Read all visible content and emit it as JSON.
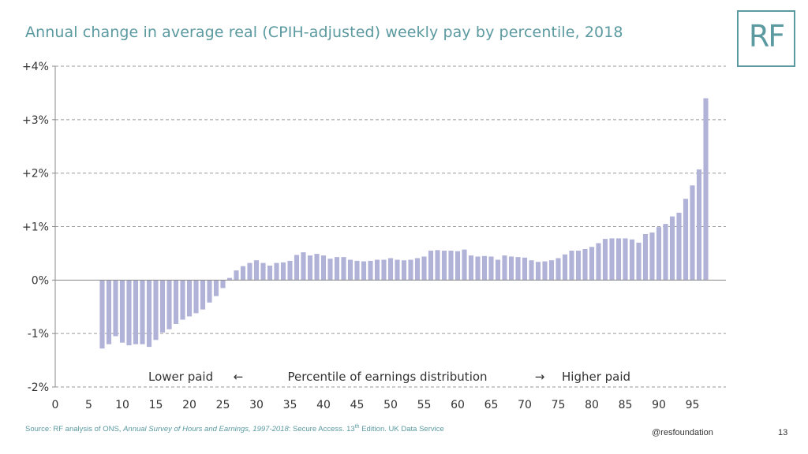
{
  "header": {
    "title": "Annual change in average real (CPIH-adjusted) weekly pay by percentile, 2018",
    "logo_text": "RF"
  },
  "footer": {
    "source_prefix": "Source: RF analysis of ONS, ",
    "source_italic": "Annual Survey of Hours and Earnings, 1997-2018",
    "source_mid": ": Secure Access. 13",
    "source_sup": "th",
    "source_suffix": " Edition. UK Data Service",
    "handle": "@resfoundation",
    "page_number": "13"
  },
  "chart_data": {
    "type": "bar",
    "title": "Annual change in average real (CPIH-adjusted) weekly pay by percentile, 2018",
    "ylim": [
      -2,
      4
    ],
    "xlim": [
      0,
      100
    ],
    "y_ticks": [
      "+4%",
      "+3%",
      "+2%",
      "+1%",
      "0%",
      "-1%",
      "-2%"
    ],
    "y_tick_values": [
      4,
      3,
      2,
      1,
      0,
      -1,
      -2
    ],
    "x_ticks": [
      "0",
      "5",
      "10",
      "15",
      "20",
      "25",
      "30",
      "35",
      "40",
      "45",
      "50",
      "55",
      "60",
      "65",
      "70",
      "75",
      "80",
      "85",
      "90",
      "95"
    ],
    "x_tick_values": [
      0,
      5,
      10,
      15,
      20,
      25,
      30,
      35,
      40,
      45,
      50,
      55,
      60,
      65,
      70,
      75,
      80,
      85,
      90,
      95
    ],
    "annotations": {
      "left": "Lower paid",
      "left_arrow": "←",
      "center": "Percentile of earnings distribution",
      "right_arrow": "→",
      "right": "Higher paid"
    },
    "grid": true,
    "color": "#b0b2d8",
    "x": [
      7,
      8,
      9,
      10,
      11,
      12,
      13,
      14,
      15,
      16,
      17,
      18,
      19,
      20,
      21,
      22,
      23,
      24,
      25,
      26,
      27,
      28,
      29,
      30,
      31,
      32,
      33,
      34,
      35,
      36,
      37,
      38,
      39,
      40,
      41,
      42,
      43,
      44,
      45,
      46,
      47,
      48,
      49,
      50,
      51,
      52,
      53,
      54,
      55,
      56,
      57,
      58,
      59,
      60,
      61,
      62,
      63,
      64,
      65,
      66,
      67,
      68,
      69,
      70,
      71,
      72,
      73,
      74,
      75,
      76,
      77,
      78,
      79,
      80,
      81,
      82,
      83,
      84,
      85,
      86,
      87,
      88,
      89,
      90,
      91,
      92,
      93,
      94,
      95,
      96,
      97
    ],
    "values": [
      -1.28,
      -1.2,
      -1.05,
      -1.17,
      -1.22,
      -1.2,
      -1.2,
      -1.25,
      -1.12,
      -0.98,
      -0.92,
      -0.82,
      -0.74,
      -0.68,
      -0.62,
      -0.55,
      -0.42,
      -0.3,
      -0.15,
      0.04,
      0.18,
      0.26,
      0.32,
      0.37,
      0.32,
      0.27,
      0.32,
      0.33,
      0.36,
      0.47,
      0.52,
      0.46,
      0.49,
      0.46,
      0.4,
      0.43,
      0.43,
      0.38,
      0.36,
      0.35,
      0.36,
      0.38,
      0.38,
      0.41,
      0.38,
      0.37,
      0.38,
      0.41,
      0.44,
      0.55,
      0.56,
      0.55,
      0.55,
      0.54,
      0.57,
      0.46,
      0.44,
      0.45,
      0.44,
      0.38,
      0.46,
      0.44,
      0.43,
      0.42,
      0.37,
      0.34,
      0.35,
      0.37,
      0.41,
      0.48,
      0.55,
      0.55,
      0.58,
      0.62,
      0.69,
      0.77,
      0.78,
      0.78,
      0.78,
      0.76,
      0.7,
      0.86,
      0.89,
      0.99,
      1.05,
      1.19,
      1.26,
      1.52,
      1.77,
      2.07,
      3.4
    ]
  }
}
